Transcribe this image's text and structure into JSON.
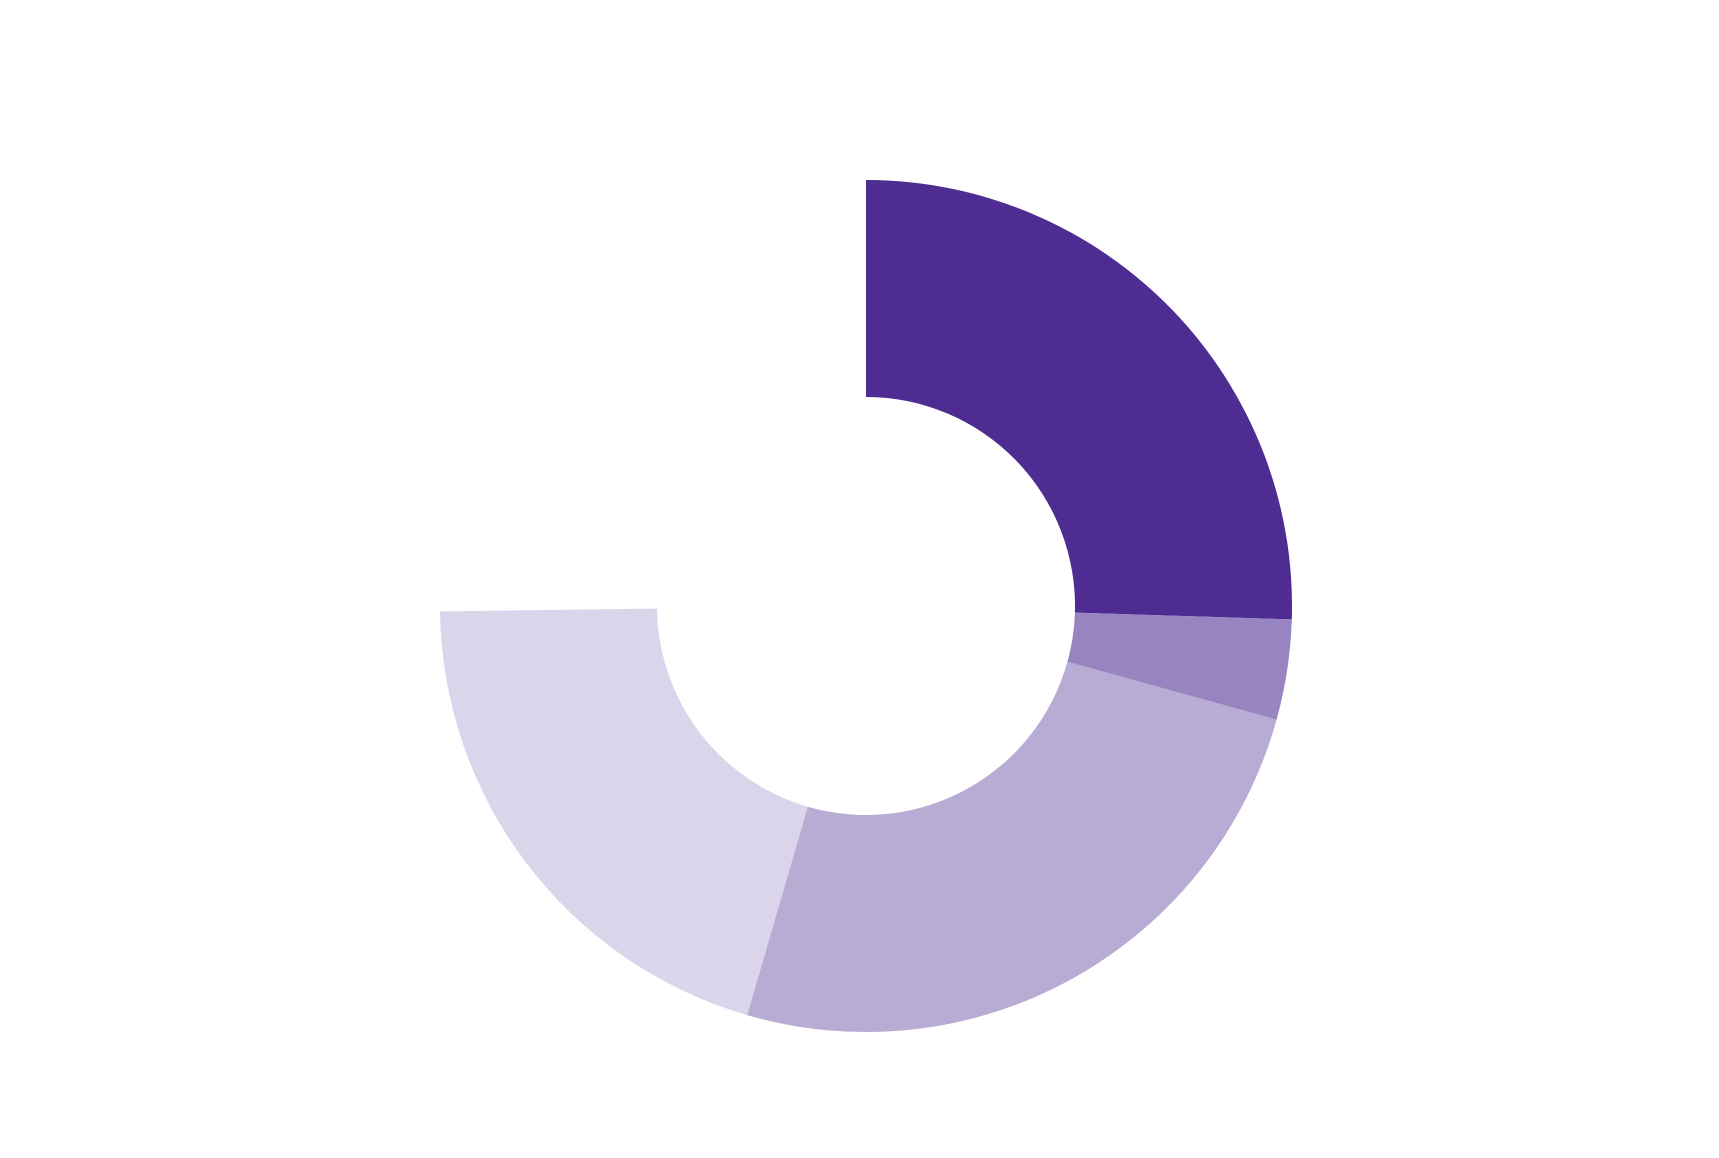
{
  "chart_data": {
    "type": "donut",
    "values": [
      25.5,
      3.8,
      25.2,
      20.3
    ],
    "colors": [
      "#4e2c92",
      "#9784c0",
      "#b8acd4",
      "#dad5ea"
    ]
  }
}
